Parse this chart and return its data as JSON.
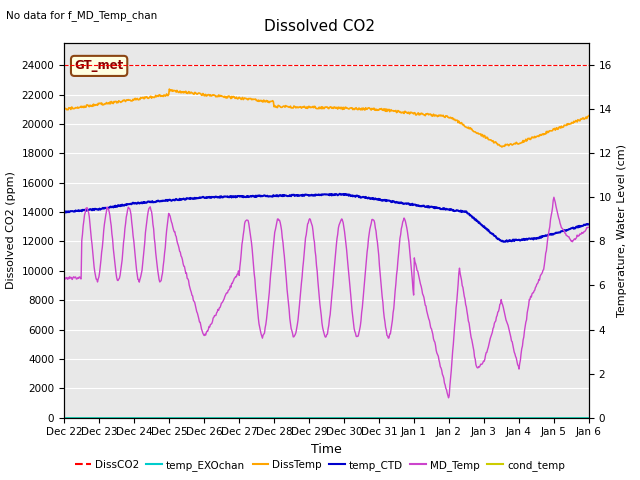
{
  "title": "Dissolved CO2",
  "subtitle": "No data for f_MD_Temp_chan",
  "xlabel": "Time",
  "ylabel_left": "Dissolved CO2 (ppm)",
  "ylabel_right": "Temperature, Water Level (cm)",
  "ylim_left": [
    0,
    25500
  ],
  "ylim_right": [
    0,
    17
  ],
  "yticks_left": [
    0,
    2000,
    4000,
    6000,
    8000,
    10000,
    12000,
    14000,
    16000,
    18000,
    20000,
    22000,
    24000
  ],
  "yticks_right": [
    0,
    2,
    4,
    6,
    8,
    10,
    12,
    14,
    16
  ],
  "xtick_labels": [
    "Dec 22",
    "Dec 23",
    "Dec 24",
    "Dec 25",
    "Dec 26",
    "Dec 27",
    "Dec 28",
    "Dec 29",
    "Dec 30",
    "Dec 31",
    "Jan 1",
    "Jan 2",
    "Jan 3",
    "Jan 4",
    "Jan 5",
    "Jan 6"
  ],
  "annotation_text": "GT_met",
  "bg_color": "#e8e8e8",
  "colors": {
    "DissCO2": "#ff0000",
    "temp_EXOchan": "#00cccc",
    "DissTemp": "#ffa500",
    "temp_CTD": "#0000cc",
    "MD_Temp": "#cc44cc",
    "cond_temp": "#cccc00"
  },
  "legend_labels": [
    "DissCO2",
    "temp_EXOchan",
    "DissTemp",
    "temp_CTD",
    "MD_Temp",
    "cond_temp"
  ]
}
